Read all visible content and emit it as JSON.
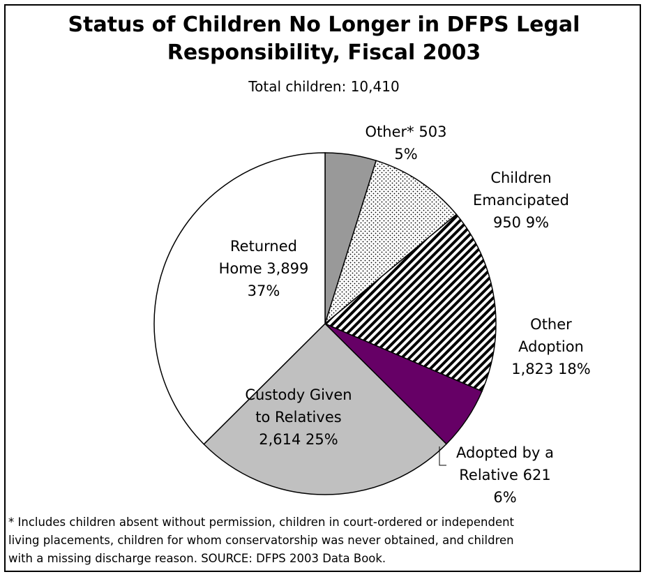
{
  "chart_data": {
    "type": "pie",
    "title_lines": [
      "Status of Children No Longer in DFPS Legal",
      "Responsibility, Fiscal 2003"
    ],
    "subtitle": "Total children: 10,410",
    "slices": [
      {
        "name": "Other*",
        "value": 503,
        "percent": "5%",
        "color": "#999999",
        "pattern": "solid",
        "label_lines": [
          "Other*  503",
          "5%"
        ]
      },
      {
        "name": "Children Emancipated",
        "value": 950,
        "percent": "9%",
        "color": "#ffffff",
        "pattern": "dots",
        "label_lines": [
          "Children",
          "Emancipated",
          "950  9%"
        ]
      },
      {
        "name": "Other Adoption",
        "value": 1823,
        "percent": "18%",
        "color": "#ffffff",
        "pattern": "stripes",
        "label_lines": [
          "Other",
          "Adoption",
          "1,823  18%"
        ]
      },
      {
        "name": "Adopted by a Relative",
        "value": 621,
        "percent": "6%",
        "color": "#660066",
        "pattern": "solid",
        "label_lines": [
          "Adopted by a",
          "Relative  621",
          "6%"
        ]
      },
      {
        "name": "Custody Given to Relatives",
        "value": 2614,
        "percent": "25%",
        "color": "#c0c0c0",
        "pattern": "solid",
        "label_lines": [
          "Custody Given",
          "to Relatives",
          "2,614  25%"
        ]
      },
      {
        "name": "Returned Home",
        "value": 3899,
        "percent": "37%",
        "color": "#ffffff",
        "pattern": "solid",
        "label_lines": [
          "Returned",
          "Home  3,899",
          "37%"
        ]
      }
    ],
    "start": "12 o'clock",
    "direction": "clockwise"
  },
  "footnote_lines": [
    "* Includes children absent without permission, children in court-ordered or independent",
    "living placements, children for whom conservatorship was never obtained, and children",
    "with a missing discharge reason. SOURCE: DFPS 2003 Data Book."
  ]
}
